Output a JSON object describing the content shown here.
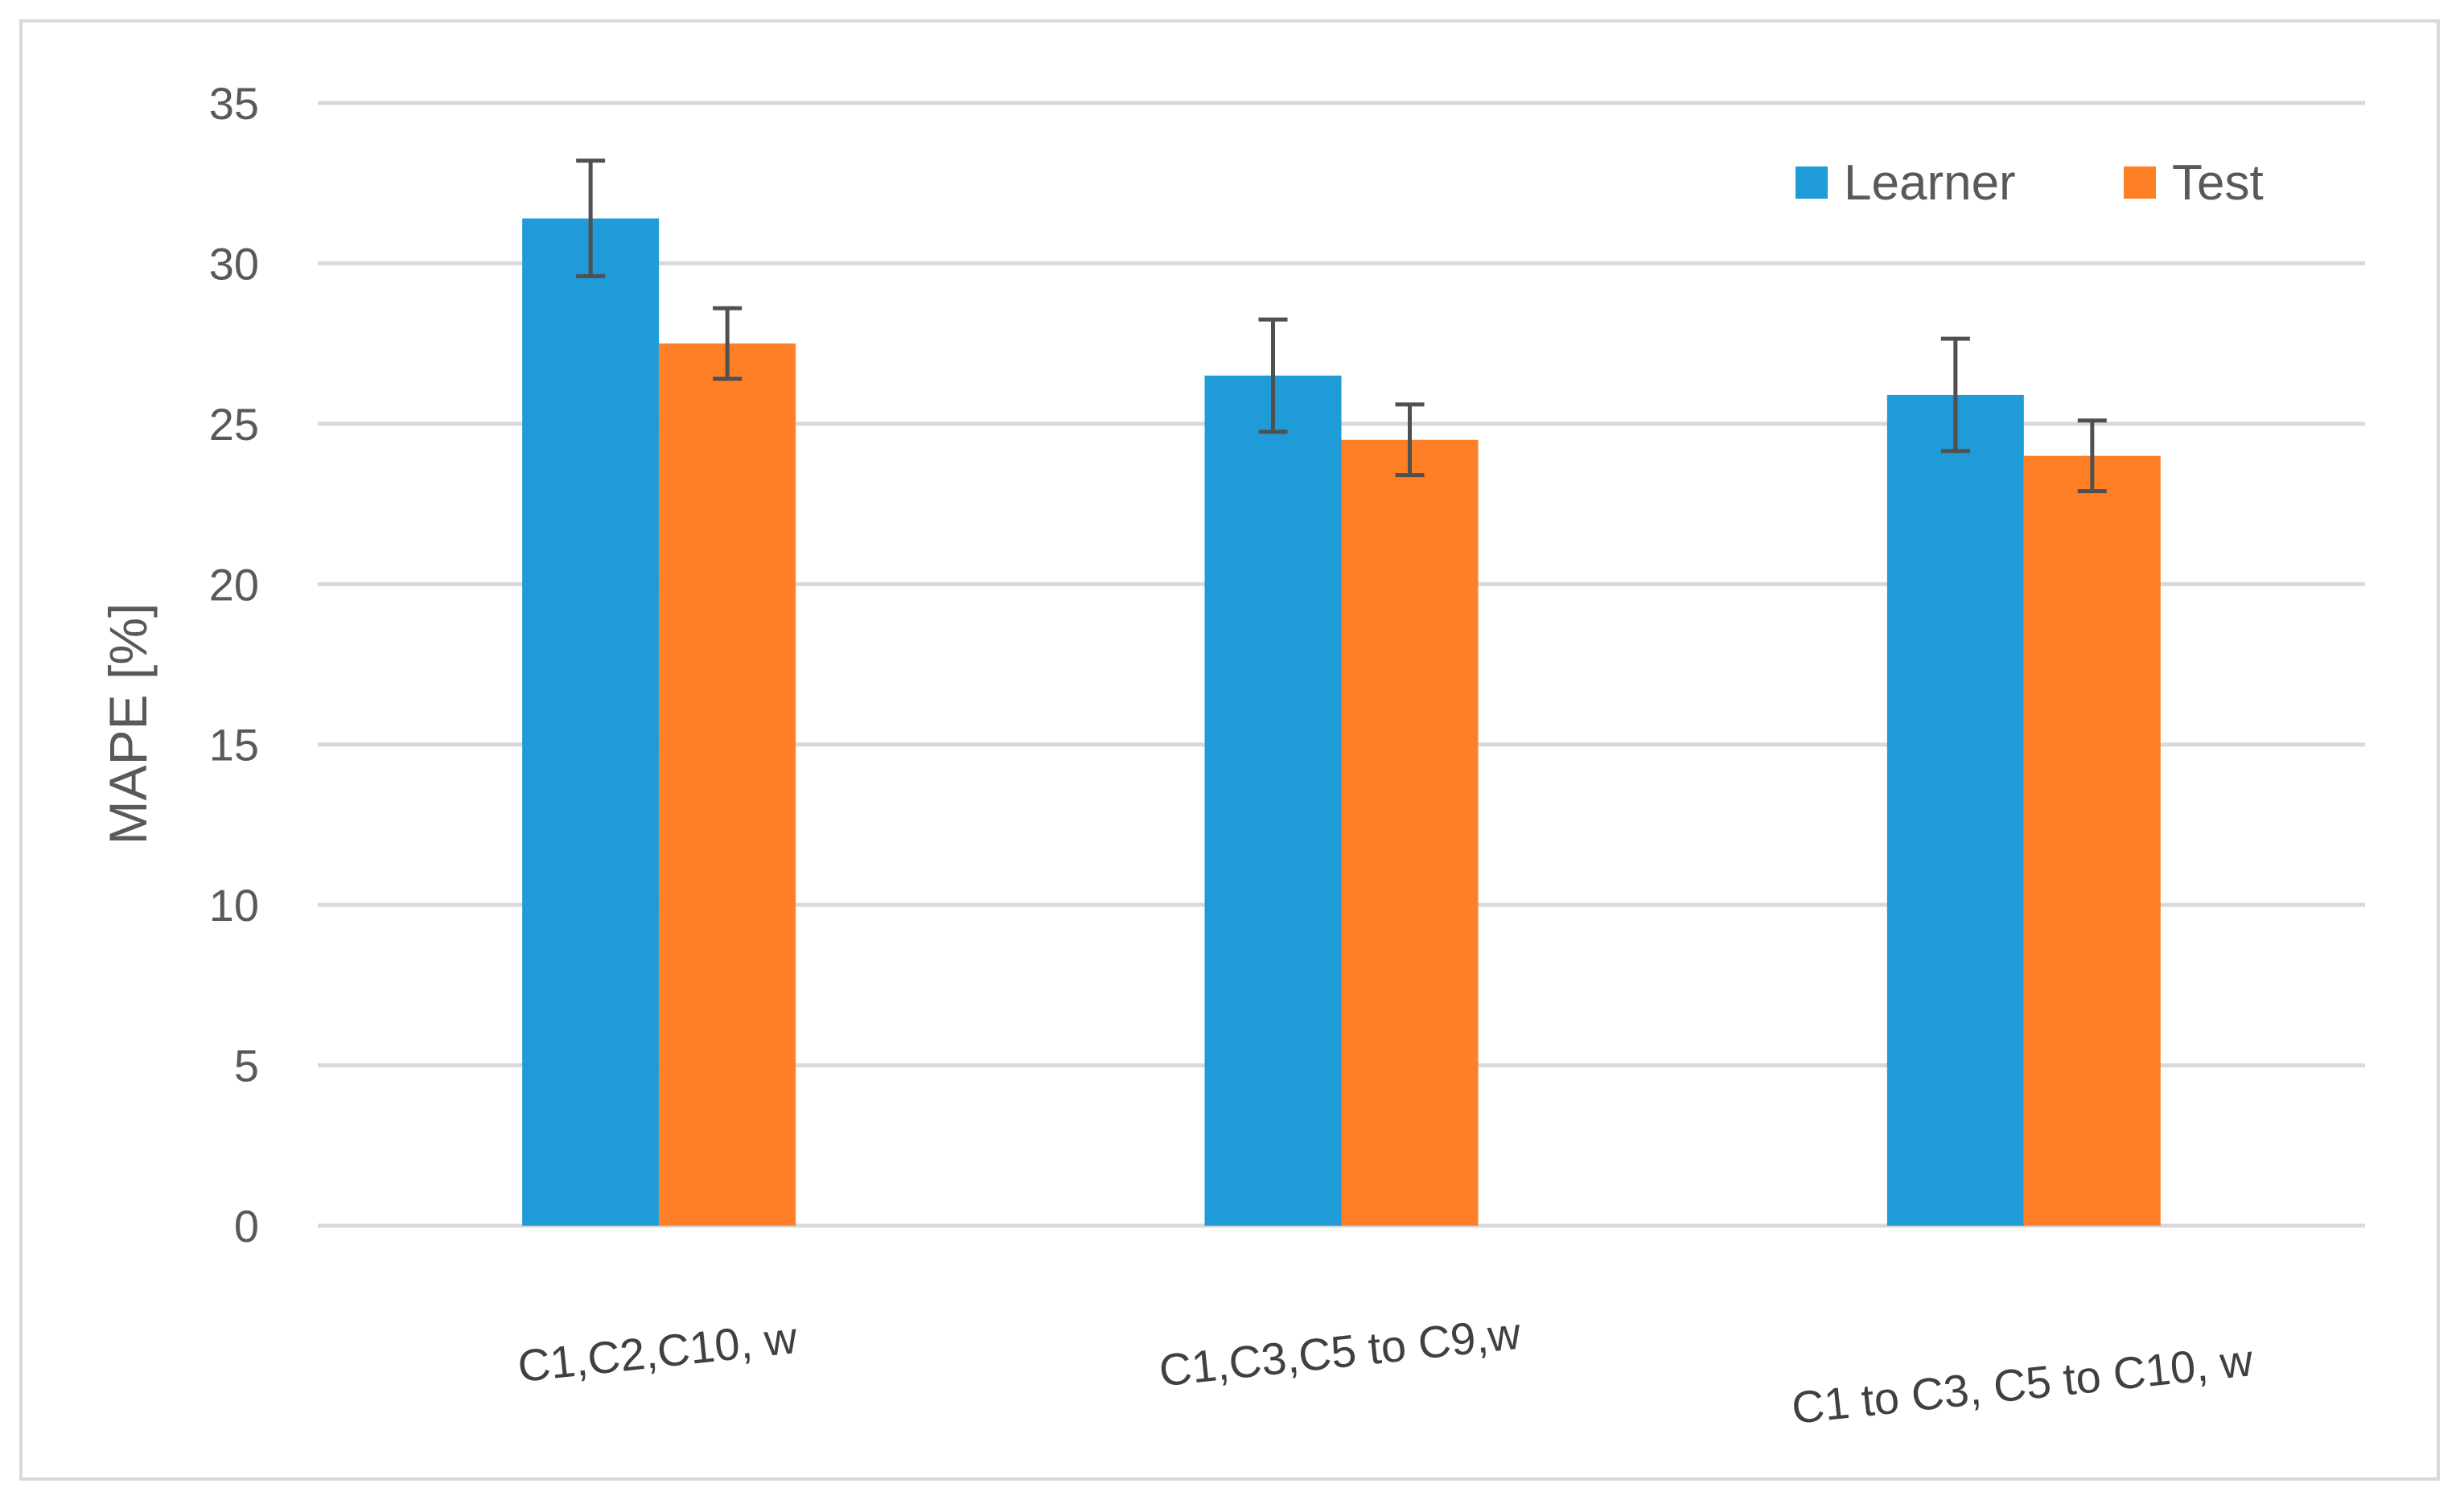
{
  "chart_data": {
    "type": "bar",
    "title": "",
    "xlabel": "",
    "ylabel": "MAPE [%]",
    "ylim": [
      0,
      35
    ],
    "yticks": [
      0,
      5,
      10,
      15,
      20,
      25,
      30,
      35
    ],
    "grid": true,
    "legend_position": "top-right",
    "categories": [
      "C1,C2,C10, w",
      "C1,C3,C5 to C9,w",
      "C1 to C3, C5 to C10, w"
    ],
    "series": [
      {
        "name": "Learner",
        "color": "#1f9bd7",
        "values": [
          31.4,
          26.5,
          25.9
        ],
        "error": [
          1.8,
          1.75,
          1.75
        ]
      },
      {
        "name": "Test",
        "color": "#fe7f26",
        "values": [
          27.5,
          24.5,
          24.0
        ],
        "error": [
          1.1,
          1.1,
          1.1
        ]
      }
    ],
    "error_bar_color": "#505050"
  }
}
